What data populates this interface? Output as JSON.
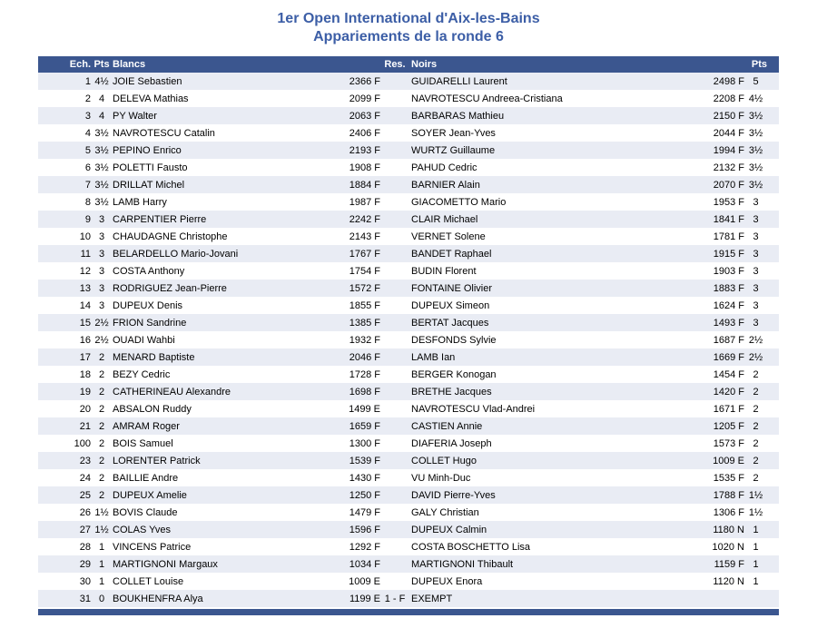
{
  "title": "1er Open International d'Aix-les-Bains",
  "subtitle": "Appariements de la ronde 6",
  "colors": {
    "header_bg": "#3b568f",
    "stripe": "#e9ecf4",
    "title_text": "#3c5ea6"
  },
  "table": {
    "headers": {
      "ech": "Ech.",
      "pts_white": "Pts",
      "blancs": "Blancs",
      "res": "Res.",
      "noirs": "Noirs",
      "pts_black": "Pts"
    },
    "rows": [
      {
        "ech": "1",
        "pts_w": "4½",
        "blancs": "JOIE Sebastien",
        "elo_w": "2366 F",
        "res": "",
        "noirs": "GUIDARELLI Laurent",
        "elo_n": "2498 F",
        "pts_n": "5"
      },
      {
        "ech": "2",
        "pts_w": "4",
        "blancs": "DELEVA Mathias",
        "elo_w": "2099 F",
        "res": "",
        "noirs": "NAVROTESCU Andreea-Cristiana",
        "elo_n": "2208 F",
        "pts_n": "4½"
      },
      {
        "ech": "3",
        "pts_w": "4",
        "blancs": "PY Walter",
        "elo_w": "2063 F",
        "res": "",
        "noirs": "BARBARAS Mathieu",
        "elo_n": "2150 F",
        "pts_n": "3½"
      },
      {
        "ech": "4",
        "pts_w": "3½",
        "blancs": "NAVROTESCU Catalin",
        "elo_w": "2406 F",
        "res": "",
        "noirs": "SOYER Jean-Yves",
        "elo_n": "2044 F",
        "pts_n": "3½"
      },
      {
        "ech": "5",
        "pts_w": "3½",
        "blancs": "PEPINO Enrico",
        "elo_w": "2193 F",
        "res": "",
        "noirs": "WURTZ Guillaume",
        "elo_n": "1994 F",
        "pts_n": "3½"
      },
      {
        "ech": "6",
        "pts_w": "3½",
        "blancs": "POLETTI Fausto",
        "elo_w": "1908 F",
        "res": "",
        "noirs": "PAHUD Cedric",
        "elo_n": "2132 F",
        "pts_n": "3½"
      },
      {
        "ech": "7",
        "pts_w": "3½",
        "blancs": "DRILLAT Michel",
        "elo_w": "1884 F",
        "res": "",
        "noirs": "BARNIER Alain",
        "elo_n": "2070 F",
        "pts_n": "3½"
      },
      {
        "ech": "8",
        "pts_w": "3½",
        "blancs": "LAMB Harry",
        "elo_w": "1987 F",
        "res": "",
        "noirs": "GIACOMETTO Mario",
        "elo_n": "1953 F",
        "pts_n": "3"
      },
      {
        "ech": "9",
        "pts_w": "3",
        "blancs": "CARPENTIER Pierre",
        "elo_w": "2242 F",
        "res": "",
        "noirs": "CLAIR Michael",
        "elo_n": "1841 F",
        "pts_n": "3"
      },
      {
        "ech": "10",
        "pts_w": "3",
        "blancs": "CHAUDAGNE Christophe",
        "elo_w": "2143 F",
        "res": "",
        "noirs": "VERNET Solene",
        "elo_n": "1781 F",
        "pts_n": "3"
      },
      {
        "ech": "11",
        "pts_w": "3",
        "blancs": "BELARDELLO Mario-Jovani",
        "elo_w": "1767 F",
        "res": "",
        "noirs": "BANDET Raphael",
        "elo_n": "1915 F",
        "pts_n": "3"
      },
      {
        "ech": "12",
        "pts_w": "3",
        "blancs": "COSTA Anthony",
        "elo_w": "1754 F",
        "res": "",
        "noirs": "BUDIN Florent",
        "elo_n": "1903 F",
        "pts_n": "3"
      },
      {
        "ech": "13",
        "pts_w": "3",
        "blancs": "RODRIGUEZ Jean-Pierre",
        "elo_w": "1572 F",
        "res": "",
        "noirs": "FONTAINE Olivier",
        "elo_n": "1883 F",
        "pts_n": "3"
      },
      {
        "ech": "14",
        "pts_w": "3",
        "blancs": "DUPEUX Denis",
        "elo_w": "1855 F",
        "res": "",
        "noirs": "DUPEUX Simeon",
        "elo_n": "1624 F",
        "pts_n": "3"
      },
      {
        "ech": "15",
        "pts_w": "2½",
        "blancs": "FRION Sandrine",
        "elo_w": "1385 F",
        "res": "",
        "noirs": "BERTAT Jacques",
        "elo_n": "1493 F",
        "pts_n": "3"
      },
      {
        "ech": "16",
        "pts_w": "2½",
        "blancs": "OUADI Wahbi",
        "elo_w": "1932 F",
        "res": "",
        "noirs": "DESFONDS Sylvie",
        "elo_n": "1687 F",
        "pts_n": "2½"
      },
      {
        "ech": "17",
        "pts_w": "2",
        "blancs": "MENARD Baptiste",
        "elo_w": "2046 F",
        "res": "",
        "noirs": "LAMB Ian",
        "elo_n": "1669 F",
        "pts_n": "2½"
      },
      {
        "ech": "18",
        "pts_w": "2",
        "blancs": "BEZY Cedric",
        "elo_w": "1728 F",
        "res": "",
        "noirs": "BERGER Konogan",
        "elo_n": "1454 F",
        "pts_n": "2"
      },
      {
        "ech": "19",
        "pts_w": "2",
        "blancs": "CATHERINEAU Alexandre",
        "elo_w": "1698 F",
        "res": "",
        "noirs": "BRETHE Jacques",
        "elo_n": "1420 F",
        "pts_n": "2"
      },
      {
        "ech": "20",
        "pts_w": "2",
        "blancs": "ABSALON Ruddy",
        "elo_w": "1499 E",
        "res": "",
        "noirs": "NAVROTESCU Vlad-Andrei",
        "elo_n": "1671 F",
        "pts_n": "2"
      },
      {
        "ech": "21",
        "pts_w": "2",
        "blancs": "AMRAM Roger",
        "elo_w": "1659 F",
        "res": "",
        "noirs": "CASTIEN Annie",
        "elo_n": "1205 F",
        "pts_n": "2"
      },
      {
        "ech": "100",
        "pts_w": "2",
        "blancs": "BOIS Samuel",
        "elo_w": "1300 F",
        "res": "",
        "noirs": "DIAFERIA Joseph",
        "elo_n": "1573 F",
        "pts_n": "2"
      },
      {
        "ech": "23",
        "pts_w": "2",
        "blancs": "LORENTER Patrick",
        "elo_w": "1539 F",
        "res": "",
        "noirs": "COLLET Hugo",
        "elo_n": "1009 E",
        "pts_n": "2"
      },
      {
        "ech": "24",
        "pts_w": "2",
        "blancs": "BAILLIE Andre",
        "elo_w": "1430 F",
        "res": "",
        "noirs": "VU Minh-Duc",
        "elo_n": "1535 F",
        "pts_n": "2"
      },
      {
        "ech": "25",
        "pts_w": "2",
        "blancs": "DUPEUX Amelie",
        "elo_w": "1250 F",
        "res": "",
        "noirs": "DAVID Pierre-Yves",
        "elo_n": "1788 F",
        "pts_n": "1½"
      },
      {
        "ech": "26",
        "pts_w": "1½",
        "blancs": "BOVIS Claude",
        "elo_w": "1479 F",
        "res": "",
        "noirs": "GALY Christian",
        "elo_n": "1306 F",
        "pts_n": "1½"
      },
      {
        "ech": "27",
        "pts_w": "1½",
        "blancs": "COLAS Yves",
        "elo_w": "1596 F",
        "res": "",
        "noirs": "DUPEUX Calmin",
        "elo_n": "1180 N",
        "pts_n": "1"
      },
      {
        "ech": "28",
        "pts_w": "1",
        "blancs": "VINCENS Patrice",
        "elo_w": "1292 F",
        "res": "",
        "noirs": "COSTA BOSCHETTO Lisa",
        "elo_n": "1020 N",
        "pts_n": "1"
      },
      {
        "ech": "29",
        "pts_w": "1",
        "blancs": "MARTIGNONI Margaux",
        "elo_w": "1034 F",
        "res": "",
        "noirs": "MARTIGNONI Thibault",
        "elo_n": "1159 F",
        "pts_n": "1"
      },
      {
        "ech": "30",
        "pts_w": "1",
        "blancs": "COLLET Louise",
        "elo_w": "1009 E",
        "res": "",
        "noirs": "DUPEUX Enora",
        "elo_n": "1120 N",
        "pts_n": "1"
      },
      {
        "ech": "31",
        "pts_w": "0",
        "blancs": "BOUKHENFRA Alya",
        "elo_w": "1199 E",
        "res": "1 - F",
        "noirs": "EXEMPT",
        "elo_n": "",
        "pts_n": ""
      }
    ]
  }
}
